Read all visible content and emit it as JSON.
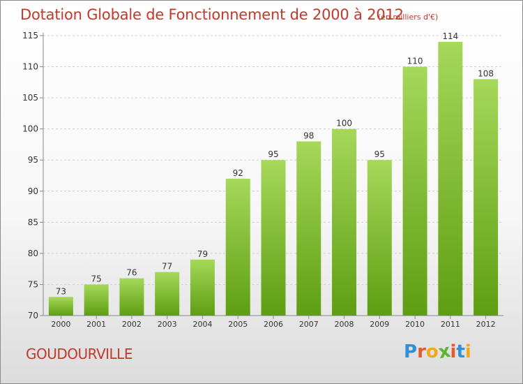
{
  "header": {
    "title": "Dotation Globale de Fonctionnement de 2000 à 2012",
    "unit": "(en milliers d'€)"
  },
  "footer": {
    "commune": "GOUDOURVILLE",
    "logo_letters": [
      "P",
      "r",
      "o",
      "x",
      "i",
      "t",
      "i"
    ],
    "logo_colors": [
      "#2f8fd8",
      "#e8582b",
      "#f2a81d",
      "#5bb532",
      "#e8582b",
      "#2f8fd8",
      "#f2a81d"
    ]
  },
  "chart_data": {
    "type": "bar",
    "title": "Dotation Globale de Fonctionnement de 2000 à 2012",
    "subtitle": "(en milliers d'€)",
    "categories": [
      "2000",
      "2001",
      "2002",
      "2003",
      "2004",
      "2005",
      "2006",
      "2007",
      "2008",
      "2009",
      "2010",
      "2011",
      "2012"
    ],
    "values": [
      73,
      75,
      76,
      77,
      79,
      92,
      95,
      98,
      100,
      95,
      110,
      114,
      108
    ],
    "data_labels": [
      "73",
      "75",
      "76",
      "77",
      "79",
      "92",
      "95",
      "98",
      "100",
      "95",
      "110",
      "114",
      "108"
    ],
    "ylim": [
      70,
      115
    ],
    "yticks": [
      70,
      75,
      80,
      85,
      90,
      95,
      100,
      105,
      110,
      115
    ],
    "grid": true,
    "bar_color_top": "#a6d85a",
    "bar_color_bottom": "#5e9e12",
    "text_color": "#333333"
  }
}
